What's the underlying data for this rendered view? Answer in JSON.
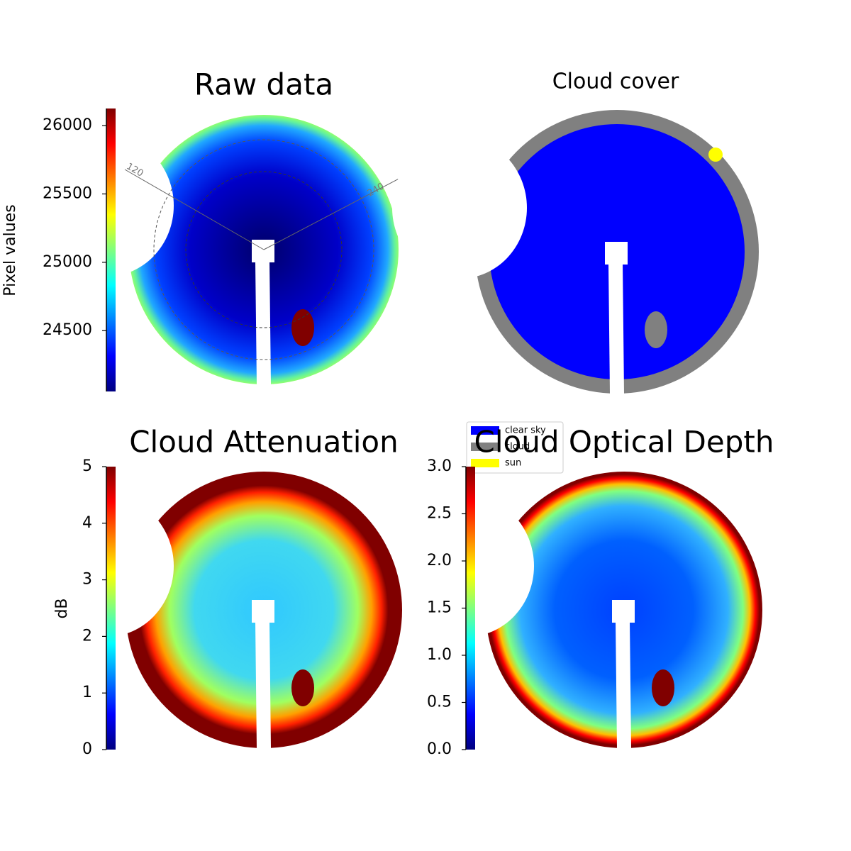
{
  "chart_data": [
    {
      "type": "image",
      "title": "Raw data",
      "colormap": "jet",
      "colorbar_label": "Pixel values",
      "ylim": [
        24055,
        26125
      ],
      "yticks": [
        24500,
        25000,
        25500,
        26000
      ],
      "annotations": [
        "120",
        "240"
      ]
    },
    {
      "type": "image",
      "title": "Cloud cover",
      "legend": "lower left",
      "series": [
        {
          "name": "clear sky",
          "color": "#0000ff"
        },
        {
          "name": "cloud",
          "color": "#808080"
        },
        {
          "name": "sun",
          "color": "#ffff00"
        }
      ]
    },
    {
      "type": "image",
      "title": "Cloud Attenuation",
      "colormap": "jet",
      "colorbar_label": "dB",
      "ylim": [
        0,
        5
      ],
      "yticks": [
        0,
        1,
        2,
        3,
        4,
        5
      ]
    },
    {
      "type": "image",
      "title": "Cloud Optical Depth",
      "colormap": "jet",
      "ylim": [
        0,
        3
      ],
      "yticks": [
        {
          "value": 0,
          "label": "0.0"
        },
        {
          "value": 0.5,
          "label": "0.5"
        },
        {
          "value": 1,
          "label": "1.0"
        },
        {
          "value": 1.5,
          "label": "1.5"
        },
        {
          "value": 2,
          "label": "2.0"
        },
        {
          "value": 2.5,
          "label": "2.5"
        },
        {
          "value": 3,
          "label": "3.0"
        }
      ]
    }
  ]
}
